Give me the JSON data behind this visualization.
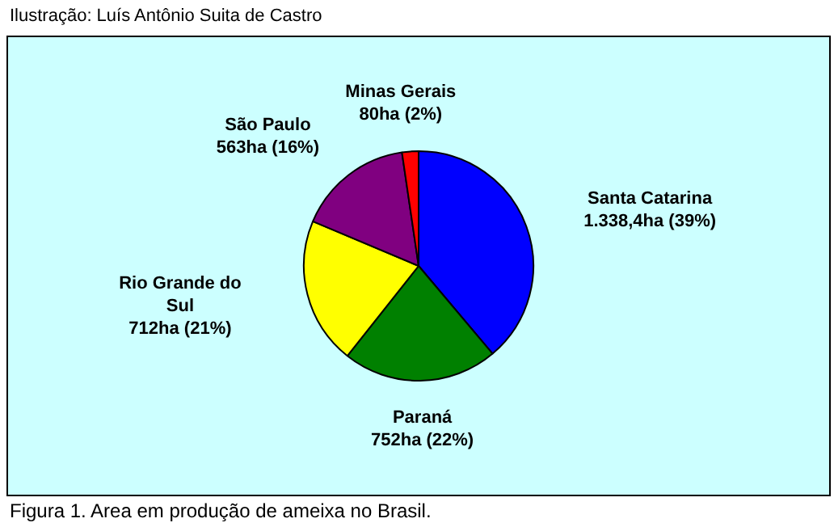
{
  "chart_data": {
    "type": "pie",
    "categories": [
      "Santa Catarina",
      "Paraná",
      "Rio Grande do Sul",
      "São Paulo",
      "Minas Gerais"
    ],
    "values": [
      1338.4,
      752,
      712,
      563,
      80
    ],
    "value_labels": [
      "1.338,4ha (39%)",
      "752ha (22%)",
      "712ha (21%)",
      "563ha (16%)",
      "80ha (2%)"
    ],
    "colors": [
      "#0000ff",
      "#008000",
      "#ffff00",
      "#800080",
      "#ff0000"
    ],
    "legend": false,
    "annotations": [
      "Ilustração: Luís Antônio Suita de Castro",
      "Figura 1. Area em produção de ameixa no Brasil."
    ]
  }
}
